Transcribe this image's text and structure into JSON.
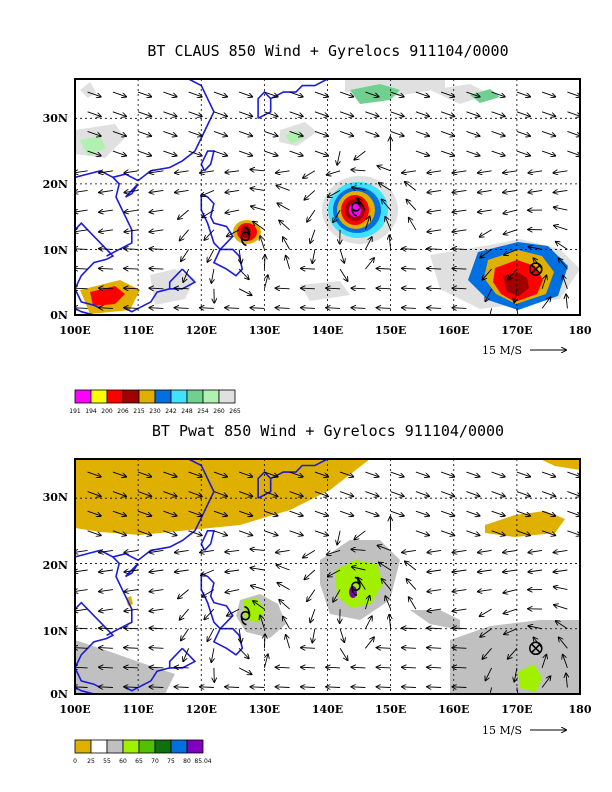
{
  "chart_data": [
    {
      "type": "heatmap",
      "title": "BT CLAUS 850 Wind + Gyrelocs 911104/0000",
      "x_ticks": [
        "100E",
        "110E",
        "120E",
        "130E",
        "140E",
        "150E",
        "160E",
        "170E",
        "180"
      ],
      "y_ticks": [
        "0N",
        "10N",
        "20N",
        "30N"
      ],
      "xlim": [
        100,
        180
      ],
      "ylim": [
        0,
        36
      ],
      "grid": true,
      "wind_scale_label": "15 M/S",
      "colorbar": {
        "labels": [
          "191",
          "194",
          "200",
          "206",
          "215",
          "230",
          "242",
          "248",
          "254",
          "260",
          "265"
        ],
        "colors": [
          "#ff00ff",
          "#ffff00",
          "#ff0000",
          "#a00000",
          "#e0b000",
          "#0070e0",
          "#40e0ff",
          "#70d090",
          "#b0f0b0",
          "#e0e0e0"
        ]
      },
      "gyrelocs": [
        {
          "symbol": "cyclone",
          "lon": 127,
          "lat": 12
        },
        {
          "symbol": "cyclone",
          "lon": 144.5,
          "lat": 16.5
        },
        {
          "symbol": "circled-x",
          "lon": 173,
          "lat": 7
        }
      ]
    },
    {
      "type": "heatmap",
      "title": "BT Pwat 850 Wind + Gyrelocs 911104/0000",
      "x_ticks": [
        "100E",
        "110E",
        "120E",
        "130E",
        "140E",
        "150E",
        "160E",
        "170E",
        "180"
      ],
      "y_ticks": [
        "0N",
        "10N",
        "20N",
        "30N"
      ],
      "xlim": [
        100,
        180
      ],
      "ylim": [
        0,
        36
      ],
      "grid": true,
      "wind_scale_label": "15 M/S",
      "colorbar": {
        "labels": [
          "0",
          "25",
          "55",
          "60",
          "65",
          "70",
          "75",
          "80",
          "85.04"
        ],
        "colors": [
          "#e0b000",
          "#ffffff",
          "#c0c0c0",
          "#a0f000",
          "#50c000",
          "#107010",
          "#0070e0",
          "#8000c0"
        ]
      },
      "gyrelocs": [
        {
          "symbol": "cyclone",
          "lon": 127,
          "lat": 12
        },
        {
          "symbol": "cyclone",
          "lon": 144.5,
          "lat": 16.5
        },
        {
          "symbol": "circled-x",
          "lon": 173,
          "lat": 7
        }
      ]
    }
  ]
}
